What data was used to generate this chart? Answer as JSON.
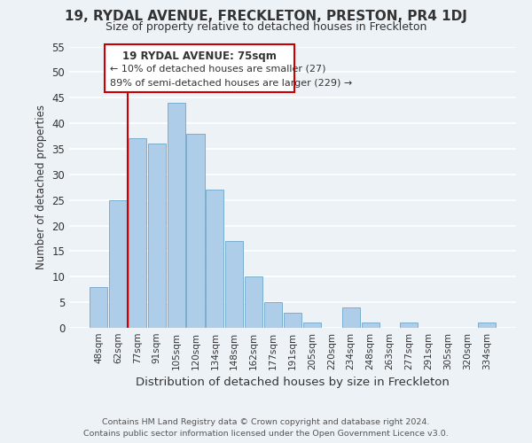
{
  "title": "19, RYDAL AVENUE, FRECKLETON, PRESTON, PR4 1DJ",
  "subtitle": "Size of property relative to detached houses in Freckleton",
  "xlabel": "Distribution of detached houses by size in Freckleton",
  "ylabel": "Number of detached properties",
  "footer_line1": "Contains HM Land Registry data © Crown copyright and database right 2024.",
  "footer_line2": "Contains public sector information licensed under the Open Government Licence v3.0.",
  "bin_labels": [
    "48sqm",
    "62sqm",
    "77sqm",
    "91sqm",
    "105sqm",
    "120sqm",
    "134sqm",
    "148sqm",
    "162sqm",
    "177sqm",
    "191sqm",
    "205sqm",
    "220sqm",
    "234sqm",
    "248sqm",
    "263sqm",
    "277sqm",
    "291sqm",
    "305sqm",
    "320sqm",
    "334sqm"
  ],
  "bar_heights": [
    8,
    25,
    37,
    36,
    44,
    38,
    27,
    17,
    10,
    5,
    3,
    1,
    0,
    4,
    1,
    0,
    1,
    0,
    0,
    0,
    1
  ],
  "bar_color": "#aecde8",
  "bar_edge_color": "#7aaecf",
  "vline_color": "#cc0000",
  "annotation_title": "19 RYDAL AVENUE: 75sqm",
  "annotation_line1": "← 10% of detached houses are smaller (27)",
  "annotation_line2": "89% of semi-detached houses are larger (229) →",
  "annotation_box_color": "#ffffff",
  "annotation_border_color": "#cc0000",
  "ylim": [
    0,
    55
  ],
  "yticks": [
    0,
    5,
    10,
    15,
    20,
    25,
    30,
    35,
    40,
    45,
    50,
    55
  ],
  "background_color": "#edf2f7",
  "plot_background": "#edf2f7",
  "grid_color": "#ffffff"
}
